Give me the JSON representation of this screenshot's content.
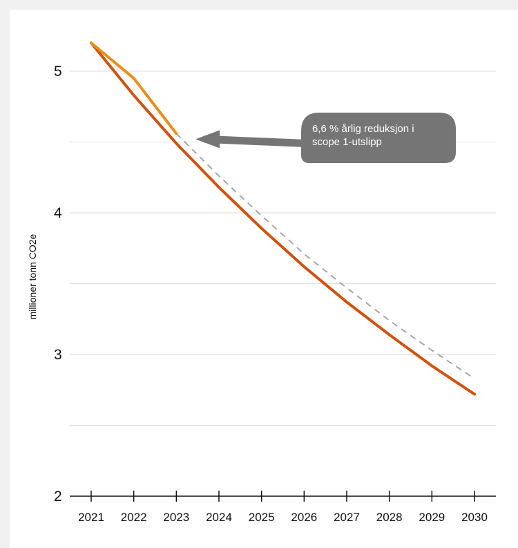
{
  "chart_data": {
    "type": "line",
    "title": "",
    "xlabel": "",
    "ylabel": "millioner tonn CO2e",
    "x": [
      2021,
      2022,
      2023,
      2024,
      2025,
      2026,
      2027,
      2028,
      2029,
      2030
    ],
    "ylim": [
      2,
      5.3
    ],
    "yticks": [
      2,
      3,
      4,
      5
    ],
    "ytick_labels": [
      "2",
      "3",
      "4",
      "5"
    ],
    "grid_minor_y": [
      2.5,
      3.5,
      4.5
    ],
    "grid": true,
    "series": [
      {
        "key": "trajectory",
        "color": "#d4500d",
        "dashed": false,
        "points": [
          [
            2021,
            5.2
          ],
          [
            2022,
            4.83
          ],
          [
            2023,
            4.49
          ],
          [
            2024,
            4.18
          ],
          [
            2025,
            3.89
          ],
          [
            2026,
            3.62
          ],
          [
            2027,
            3.37
          ],
          [
            2028,
            3.14
          ],
          [
            2029,
            2.92
          ],
          [
            2030,
            2.72
          ]
        ]
      },
      {
        "key": "actual",
        "color": "#ee8c14",
        "dashed": false,
        "points": [
          [
            2021,
            5.2
          ],
          [
            2022,
            4.95
          ],
          [
            2023,
            4.56
          ]
        ]
      },
      {
        "key": "dashed-projection",
        "color": "#a6a6a6",
        "dashed": true,
        "points": [
          [
            2023,
            4.56
          ],
          [
            2024,
            4.26
          ],
          [
            2025,
            3.98
          ],
          [
            2026,
            3.71
          ],
          [
            2027,
            3.47
          ],
          [
            2028,
            3.24
          ],
          [
            2029,
            3.03
          ],
          [
            2030,
            2.83
          ]
        ]
      }
    ],
    "annotation": {
      "text_lines": [
        "6,6 % årlig reduksjon i",
        "scope 1-utslipp"
      ],
      "points_to": [
        2023.5,
        4.52
      ],
      "box_color": "#757575"
    }
  }
}
